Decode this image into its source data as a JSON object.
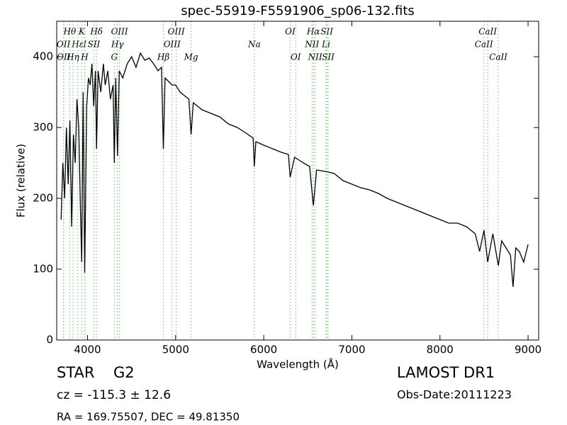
{
  "chart_data": {
    "type": "line",
    "title": "spec-55919-F5591906_sp06-132.fits",
    "x_label": "Wavelength (Å)",
    "y_label": "Flux (relative)",
    "xlim": [
      3650,
      9120
    ],
    "ylim": [
      0,
      450
    ],
    "xticks": [
      4000,
      5000,
      6000,
      7000,
      8000,
      9000
    ],
    "yticks": [
      0,
      100,
      200,
      300,
      400
    ],
    "color": "#000000",
    "line_color": "#7fc97f",
    "x": [
      3700,
      3720,
      3740,
      3760,
      3780,
      3800,
      3820,
      3840,
      3860,
      3880,
      3900,
      3920,
      3934,
      3950,
      3968,
      3990,
      4010,
      4030,
      4050,
      4070,
      4090,
      4102,
      4120,
      4150,
      4180,
      4200,
      4230,
      4260,
      4290,
      4304,
      4320,
      4340,
      4360,
      4400,
      4450,
      4500,
      4550,
      4600,
      4650,
      4700,
      4750,
      4800,
      4840,
      4861,
      4880,
      4920,
      4960,
      5000,
      5050,
      5100,
      5150,
      5175,
      5200,
      5300,
      5400,
      5500,
      5600,
      5700,
      5800,
      5880,
      5893,
      5910,
      6000,
      6100,
      6200,
      6280,
      6300,
      6350,
      6450,
      6520,
      6563,
      6600,
      6700,
      6800,
      6900,
      7000,
      7100,
      7200,
      7300,
      7400,
      7500,
      7600,
      7700,
      7800,
      7900,
      8000,
      8100,
      8200,
      8300,
      8400,
      8450,
      8500,
      8542,
      8600,
      8662,
      8700,
      8750,
      8800,
      8830,
      8860,
      8900,
      8950,
      9000
    ],
    "values": [
      170,
      250,
      200,
      300,
      220,
      310,
      160,
      290,
      250,
      340,
      300,
      180,
      110,
      350,
      95,
      330,
      370,
      360,
      390,
      330,
      380,
      270,
      380,
      350,
      390,
      360,
      380,
      340,
      360,
      250,
      370,
      260,
      380,
      370,
      390,
      400,
      385,
      405,
      395,
      398,
      390,
      380,
      385,
      270,
      370,
      365,
      360,
      360,
      350,
      345,
      340,
      290,
      335,
      325,
      320,
      315,
      305,
      300,
      292,
      285,
      245,
      280,
      275,
      270,
      265,
      262,
      230,
      258,
      250,
      245,
      190,
      240,
      238,
      235,
      225,
      220,
      215,
      212,
      207,
      200,
      195,
      190,
      185,
      180,
      175,
      170,
      165,
      165,
      160,
      150,
      125,
      155,
      110,
      150,
      105,
      140,
      130,
      120,
      75,
      130,
      125,
      110,
      135
    ],
    "spectral_lines": [
      [
        {
          "label": "Hθ",
          "x": 3798
        },
        {
          "label": "K",
          "x": 3934
        },
        {
          "label": "Hδ",
          "x": 4102
        },
        {
          "label": "OIII",
          "x": 4363
        },
        {
          "label": "OIII",
          "x": 5007
        },
        {
          "label": "OI",
          "x": 6300
        },
        {
          "label": "Hα",
          "x": 6563
        },
        {
          "label": "SII",
          "x": 6716
        },
        {
          "label": "CaII",
          "x": 8542
        }
      ],
      [
        {
          "label": "OII",
          "x": 3727
        },
        {
          "label": "Hε",
          "x": 3889
        },
        {
          "label": "I",
          "x": 3970
        },
        {
          "label": "SII",
          "x": 4072
        },
        {
          "label": "Hγ",
          "x": 4340
        },
        {
          "label": "OIII",
          "x": 4959
        },
        {
          "label": "Na",
          "x": 5893
        },
        {
          "label": "NII",
          "x": 6548
        },
        {
          "label": "Li",
          "x": 6707
        },
        {
          "label": "CaII",
          "x": 8498
        }
      ],
      [
        {
          "label": "OII",
          "x": 3729
        },
        {
          "label": "Hη",
          "x": 3835
        },
        {
          "label": "H",
          "x": 3968
        },
        {
          "label": "G",
          "x": 4304
        },
        {
          "label": "Hβ",
          "x": 4861
        },
        {
          "label": "Mg",
          "x": 5175
        },
        {
          "label": "OI",
          "x": 6363
        },
        {
          "label": "NII",
          "x": 6583
        },
        {
          "label": "SII",
          "x": 6731
        },
        {
          "label": "CaII",
          "x": 8662
        }
      ]
    ],
    "class": "STAR",
    "subclass": "G2",
    "redshift": "cz = -115.3 ± 12.6",
    "coords": "RA = 169.75507, DEC = 49.81350",
    "survey": "LAMOST DR1",
    "obs_date": "Obs-Date:20111223"
  }
}
